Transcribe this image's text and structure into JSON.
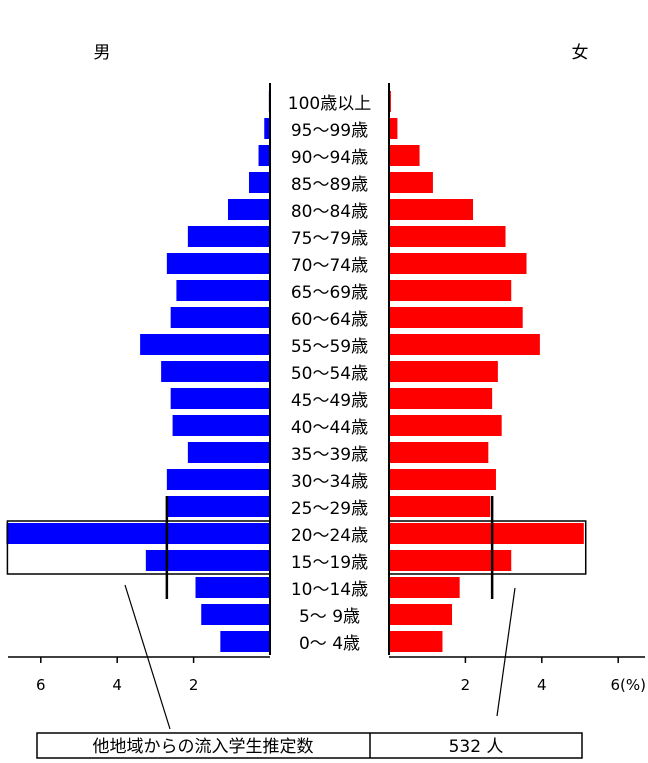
{
  "chart_data": {
    "type": "bar",
    "subtype": "population-pyramid",
    "left_label": "男",
    "right_label": "女",
    "categories": [
      "100歳以上",
      "95～99歳",
      "90～94歳",
      "85～89歳",
      "80～84歳",
      "75～79歳",
      "70～74歳",
      "65～69歳",
      "60～64歳",
      "55～59歳",
      "50～54歳",
      "45～49歳",
      "40～44歳",
      "35～39歳",
      "30～34歳",
      "25～29歳",
      "20～24歳",
      "15～19歳",
      "10～14歳",
      "5～ 9歳",
      "0～ 4歳"
    ],
    "series": [
      {
        "name": "男",
        "color": "#0000ff",
        "values": [
          0.03,
          0.15,
          0.3,
          0.55,
          1.1,
          2.15,
          2.7,
          2.45,
          2.6,
          3.4,
          2.85,
          2.6,
          2.55,
          2.15,
          2.7,
          2.7,
          6.9,
          3.25,
          1.95,
          1.8,
          1.3
        ]
      },
      {
        "name": "女",
        "color": "#ff0000",
        "values": [
          0.05,
          0.22,
          0.8,
          1.15,
          2.2,
          3.05,
          3.6,
          3.2,
          3.5,
          3.95,
          2.85,
          2.7,
          2.95,
          2.6,
          2.8,
          2.65,
          5.1,
          3.2,
          1.85,
          1.65,
          1.4
        ]
      }
    ],
    "left_axis_ticks": [
      6,
      4,
      2
    ],
    "right_axis_ticks": [
      2,
      4,
      6
    ],
    "right_axis_unit": "(%)",
    "xlim": [
      0,
      6.9
    ],
    "highlight": {
      "age_groups": [
        "20～24歳",
        "15～19歳"
      ],
      "male_value": 2.7,
      "female_value": 2.7
    },
    "annotation_label": "他地域からの流入学生推定数",
    "annotation_value": "532 人",
    "grid": false,
    "legend": "none"
  },
  "colors": {
    "male": "#0000ff",
    "female": "#ff0000",
    "frame": "#000000"
  }
}
